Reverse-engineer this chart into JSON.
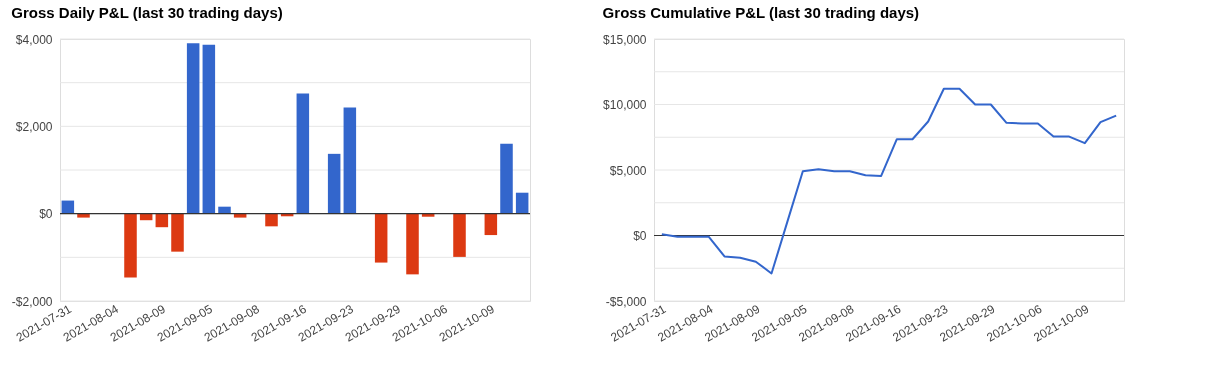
{
  "chart_data": [
    {
      "type": "bar",
      "title": "Gross Daily P&L (last 30 trading days)",
      "categories": [
        "2021-07-31",
        null,
        null,
        "2021-08-04",
        null,
        null,
        "2021-08-09",
        null,
        null,
        "2021-09-05",
        null,
        null,
        "2021-09-08",
        null,
        null,
        "2021-09-16",
        null,
        null,
        "2021-09-23",
        null,
        null,
        "2021-09-29",
        null,
        null,
        "2021-10-06",
        null,
        null,
        "2021-10-09",
        null,
        null
      ],
      "values": [
        300,
        -90,
        0,
        0,
        -1460,
        -150,
        -310,
        -870,
        3900,
        3870,
        160,
        -90,
        0,
        -290,
        -60,
        2750,
        0,
        1370,
        2430,
        0,
        -1120,
        0,
        -1390,
        -70,
        0,
        -990,
        0,
        -490,
        1600,
        480
      ],
      "colors": [
        "#3366cc",
        "#dc3912",
        "#3366cc",
        "#3366cc",
        "#dc3912",
        "#dc3912",
        "#dc3912",
        "#dc3912",
        "#3366cc",
        "#3366cc",
        "#3366cc",
        "#dc3912",
        "#3366cc",
        "#dc3912",
        "#dc3912",
        "#3366cc",
        "#3366cc",
        "#3366cc",
        "#3366cc",
        "#3366cc",
        "#dc3912",
        "#3366cc",
        "#dc3912",
        "#dc3912",
        "#3366cc",
        "#dc3912",
        "#3366cc",
        "#dc3912",
        "#3366cc",
        "#3366cc"
      ],
      "ylim": [
        -2000,
        4000
      ],
      "yticks": [
        {
          "value": -2000,
          "label": "-$2,000"
        },
        {
          "value": -1000,
          "label": null
        },
        {
          "value": 0,
          "label": "$0"
        },
        {
          "value": 1000,
          "label": null
        },
        {
          "value": 2000,
          "label": "$2,000"
        },
        {
          "value": 3000,
          "label": null
        },
        {
          "value": 4000,
          "label": "$4,000"
        }
      ],
      "ref_lines": [
        {
          "axis": "y",
          "value": 0,
          "color": "#333333"
        }
      ],
      "grid": "y",
      "legend": false
    },
    {
      "type": "line",
      "title": "Gross Cumulative P&L (last 30 trading days)",
      "categories": [
        "2021-07-31",
        null,
        null,
        "2021-08-04",
        null,
        null,
        "2021-08-09",
        null,
        null,
        "2021-09-05",
        null,
        null,
        "2021-09-08",
        null,
        null,
        "2021-09-16",
        null,
        null,
        "2021-09-23",
        null,
        null,
        "2021-09-29",
        null,
        null,
        "2021-10-06",
        null,
        null,
        "2021-10-09",
        null,
        null
      ],
      "series": [
        {
          "color": "#3366cc",
          "values": [
            100,
            -100,
            -100,
            -100,
            -1600,
            -1700,
            -2000,
            -2900,
            1000,
            4900,
            5050,
            4900,
            4900,
            4600,
            4550,
            7350,
            7350,
            8700,
            11200,
            11200,
            10000,
            10000,
            8600,
            8550,
            8550,
            7550,
            7550,
            7050,
            8650,
            9150
          ]
        }
      ],
      "ylim": [
        -5000,
        15000
      ],
      "yticks": [
        {
          "value": -5000,
          "label": "-$5,000"
        },
        {
          "value": -2500,
          "label": null
        },
        {
          "value": 0,
          "label": "$0"
        },
        {
          "value": 2500,
          "label": null
        },
        {
          "value": 5000,
          "label": "$5,000"
        },
        {
          "value": 7500,
          "label": null
        },
        {
          "value": 10000,
          "label": "$10,000"
        },
        {
          "value": 12500,
          "label": null
        },
        {
          "value": 15000,
          "label": "$15,000"
        }
      ],
      "ref_lines": [
        {
          "axis": "y",
          "value": 0,
          "color": "#333333"
        }
      ],
      "grid": "y",
      "legend": false,
      "marker": "none",
      "line_style": "solid"
    }
  ]
}
